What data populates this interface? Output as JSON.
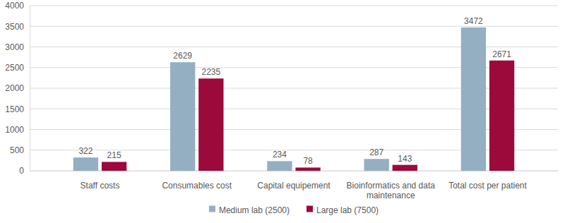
{
  "chart_data": {
    "type": "bar",
    "categories": [
      "Staff costs",
      "Consumables cost",
      "Capital equipement",
      "Bioinformatics and data maintenance",
      "Total cost per patient"
    ],
    "series": [
      {
        "name": "Medium lab (2500)",
        "color": "#94afc2",
        "values": [
          322,
          2629,
          234,
          287,
          3472
        ]
      },
      {
        "name": "Large lab (7500)",
        "color": "#9b0a3a",
        "values": [
          215,
          2235,
          78,
          143,
          2671
        ]
      }
    ],
    "ylim": [
      0,
      4000
    ],
    "yticks": [
      0,
      500,
      1000,
      1500,
      2000,
      2500,
      3000,
      3500,
      4000
    ],
    "grid": true,
    "data_labels": true,
    "legend": "bottom"
  }
}
